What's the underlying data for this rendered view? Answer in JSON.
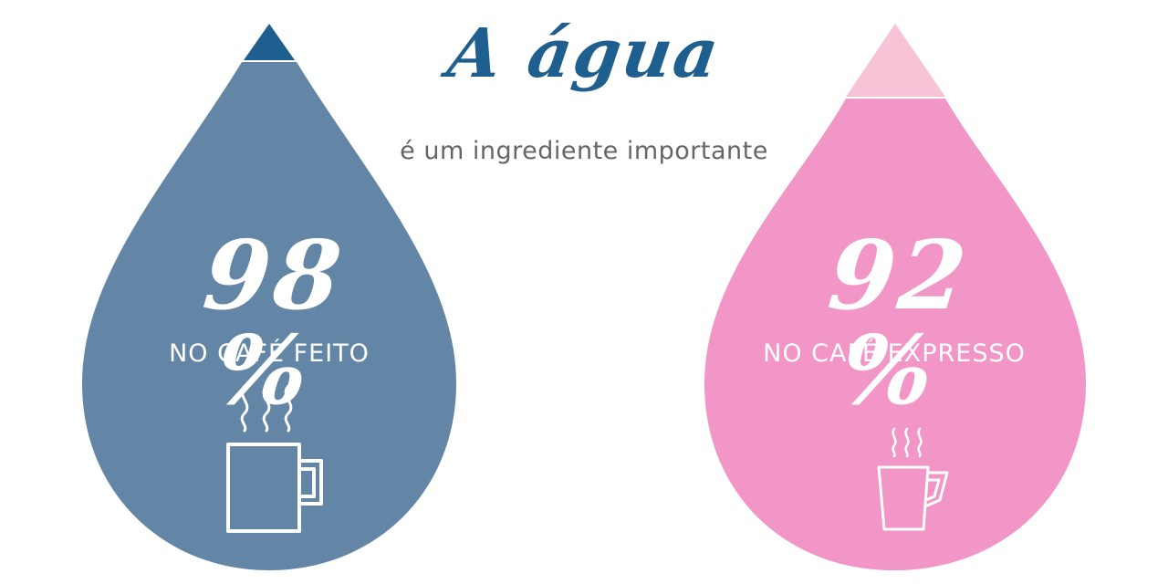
{
  "heading": {
    "title": "A água",
    "subtitle": "é um ingrediente importante"
  },
  "drops": [
    {
      "percent": "98 %",
      "label": "NO CAFÉ FEITO",
      "color": "#6385a6",
      "tip_color": "#1e5f8f",
      "icon": "coffee-mug-icon"
    },
    {
      "percent": "92 %",
      "label": "NO CAFÉ EXPRESSO",
      "color": "#f295c7",
      "tip_color": "#f6c4d6",
      "icon": "espresso-cup-icon"
    }
  ],
  "colors": {
    "title": "#1e5f8f",
    "subtitle": "#666666",
    "icon_stroke": "#ffffff"
  }
}
